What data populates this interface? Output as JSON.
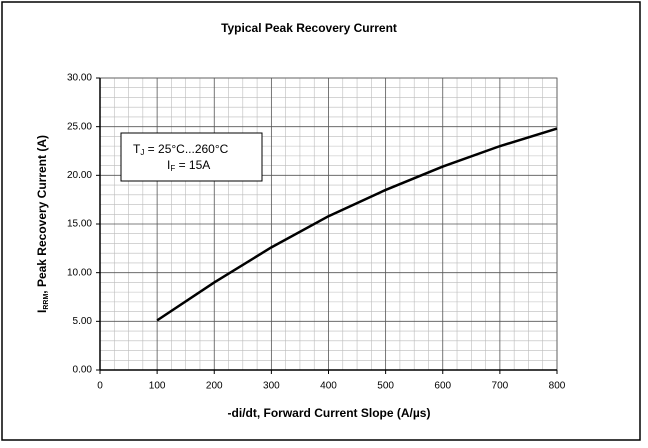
{
  "chart_data": {
    "type": "line",
    "title": "Typical Peak Recovery Current",
    "xlabel": "-di/dt, Forward Current Slope (A/µs)",
    "ylabel": {
      "base": "I",
      "sub": "RRM",
      "rest": ", Peak Recovery Current (A)"
    },
    "annotation": {
      "line1": {
        "base": "T",
        "sub": "J",
        "rest": " = 25°C...260°C"
      },
      "line2": {
        "base": "I",
        "sub": "F",
        "rest": " = 15A"
      }
    },
    "x": [
      100,
      200,
      300,
      400,
      500,
      600,
      700,
      800
    ],
    "series": [
      {
        "color": "#000000",
        "values": [
          5.1,
          9.0,
          12.6,
          15.8,
          18.5,
          20.9,
          23.0,
          24.8
        ]
      }
    ],
    "xlim": [
      0,
      800
    ],
    "xticks": [
      0,
      100,
      200,
      300,
      400,
      500,
      600,
      700,
      800
    ],
    "ylim": [
      0,
      30
    ],
    "yticks": [
      {
        "value": 0,
        "label": "0.00"
      },
      {
        "value": 5,
        "label": "5.00"
      },
      {
        "value": 10,
        "label": "10.00"
      },
      {
        "value": 15,
        "label": "15.00"
      },
      {
        "value": 20,
        "label": "20.00"
      },
      {
        "value": 25,
        "label": "25.00"
      },
      {
        "value": 30,
        "label": "30.00"
      }
    ],
    "grid": true,
    "minor_divisions": {
      "x": 4,
      "y": 5
    }
  }
}
